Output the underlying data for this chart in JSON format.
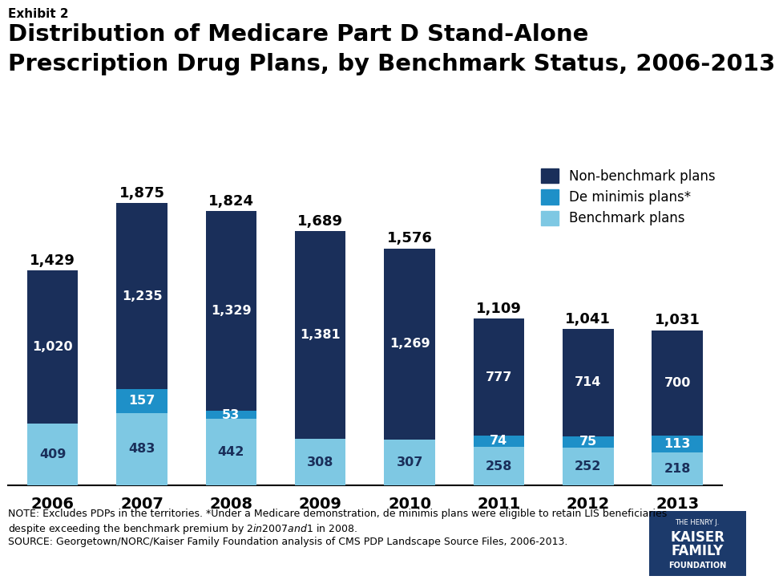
{
  "years": [
    "2006",
    "2007",
    "2008",
    "2009",
    "2010",
    "2011",
    "2012",
    "2013"
  ],
  "benchmark": [
    409,
    483,
    442,
    308,
    307,
    258,
    252,
    218
  ],
  "de_minimis": [
    0,
    157,
    53,
    0,
    0,
    74,
    75,
    113
  ],
  "non_benchmark": [
    1020,
    1235,
    1329,
    1381,
    1269,
    777,
    714,
    700
  ],
  "totals": [
    1429,
    1875,
    1824,
    1689,
    1576,
    1109,
    1041,
    1031
  ],
  "color_benchmark": "#7EC8E3",
  "color_de_minimis": "#1E90C8",
  "color_non_benchmark": "#1A2F5A",
  "exhibit_label": "Exhibit 2",
  "title_line1": "Distribution of Medicare Part D Stand-Alone",
  "title_line2": "Prescription Drug Plans, by Benchmark Status, 2006-2013",
  "legend_labels": [
    "Non-benchmark plans",
    "De minimis plans*",
    "Benchmark plans"
  ],
  "note_line1": "NOTE: Excludes PDPs in the territories. *Under a Medicare demonstration, de minimis plans were eligible to retain LIS beneficiaries",
  "note_line2": "despite exceeding the benchmark premium by $2 in 2007 and $1 in 2008.",
  "source_line": "SOURCE: Georgetown/NORC/Kaiser Family Foundation analysis of CMS PDP Landscape Source Files, 2006-2013.",
  "background_color": "#FFFFFF"
}
